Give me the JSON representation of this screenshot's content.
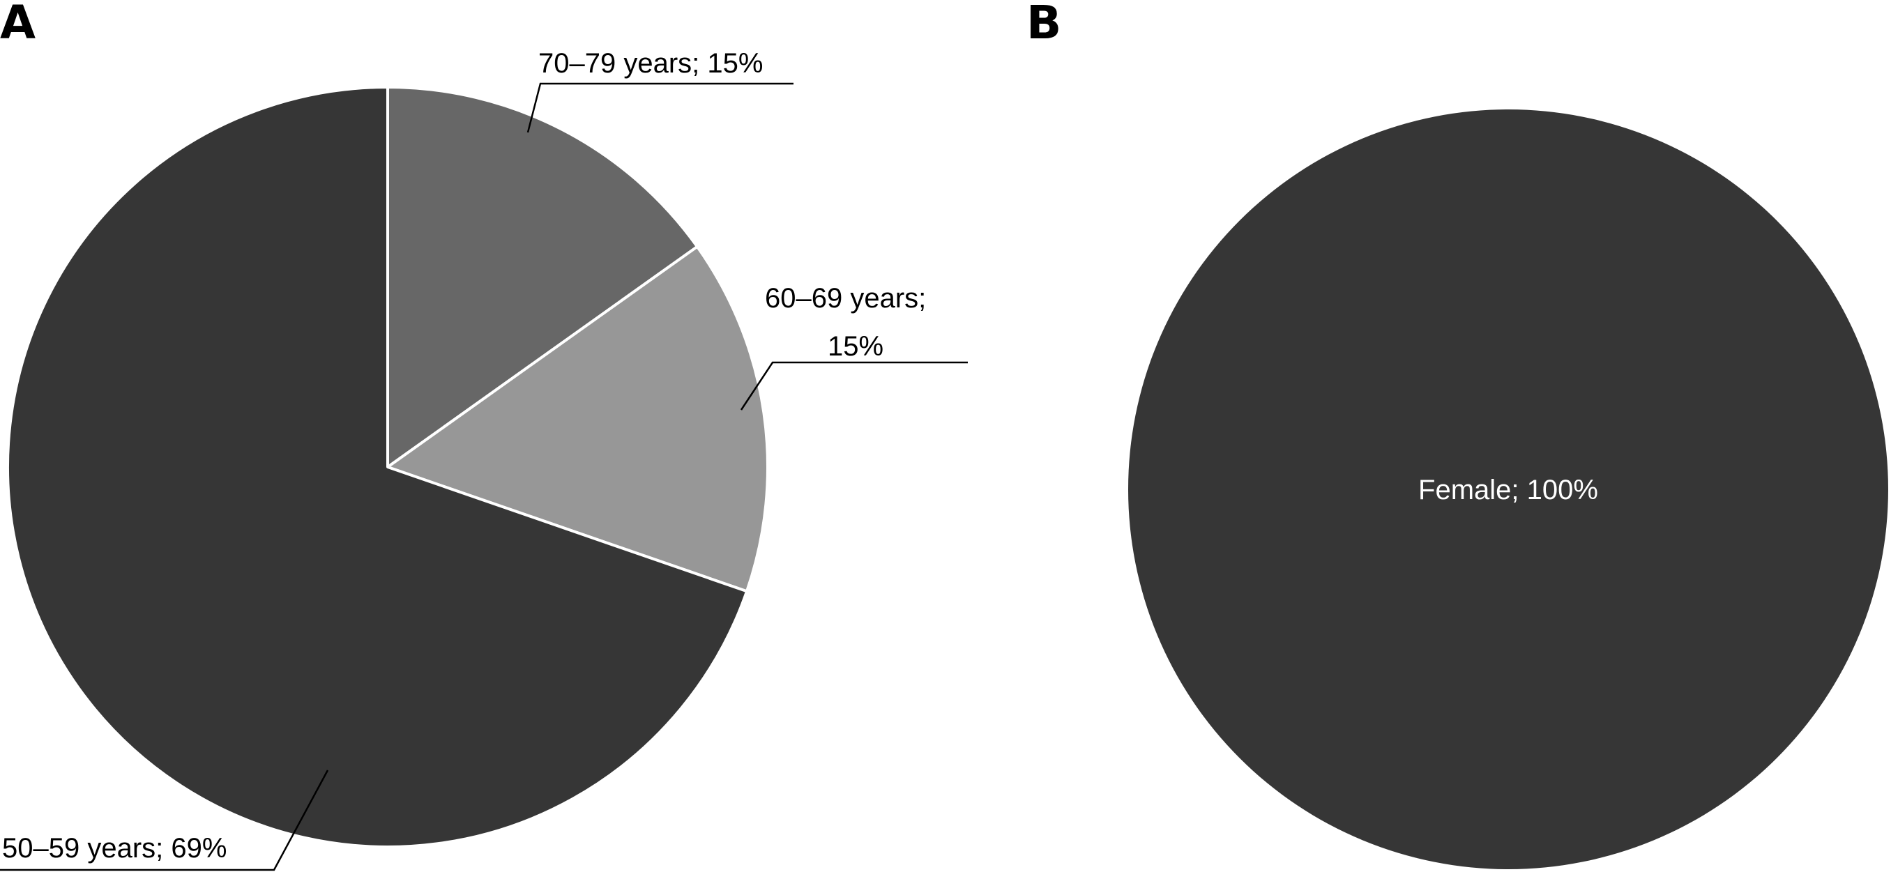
{
  "chart_data": [
    {
      "panel": "A",
      "type": "pie",
      "title": "",
      "slices": [
        {
          "label": "70–79 years; 15%",
          "value": 15,
          "color": "#676767"
        },
        {
          "label": "60–69 years;",
          "label2": "15%",
          "value": 15,
          "color": "#979797"
        },
        {
          "label": "50–59 years; 69%",
          "value": 69,
          "color": "#363636"
        }
      ]
    },
    {
      "panel": "B",
      "type": "pie",
      "title": "",
      "slices": [
        {
          "label": "Female; 100%",
          "value": 100,
          "color": "#363636"
        }
      ]
    }
  ],
  "colors": {
    "slice_edge": "#ffffff",
    "leader_line": "#000000",
    "inside_label": "#ffffff"
  }
}
